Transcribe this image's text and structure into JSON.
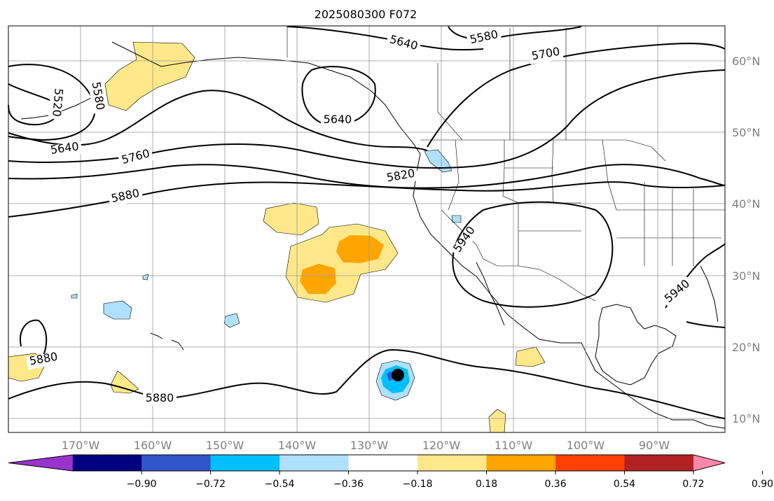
{
  "title": "2025080300 F072",
  "lon_labels": [
    "170°W",
    "160°W",
    "150°W",
    "140°W",
    "130°W",
    "120°W",
    "110°W",
    "100°W",
    "90°W"
  ],
  "lat_labels": [
    "60°N",
    "50°N",
    "40°N",
    "30°N",
    "20°N",
    "10°N"
  ],
  "contour_labels": [
    "5640",
    "5580",
    "5700",
    "5580",
    "5520",
    "5640",
    "5640",
    "5760",
    "5820",
    "5880",
    "5940",
    "5940",
    "5880",
    "5880"
  ],
  "colorbar": {
    "colors": [
      "#9933cc",
      "#000080",
      "#3355cc",
      "#00bfff",
      "#b0e0ff",
      "#ffffff",
      "#ffe88a",
      "#ffa500",
      "#ff4000",
      "#b22222",
      "#ff88aa"
    ],
    "tick_labels": [
      "−0.90",
      "−0.72",
      "−0.54",
      "−0.36",
      "−0.18",
      "0.18",
      "0.36",
      "0.54",
      "0.72",
      "0.90"
    ]
  },
  "map_colors": {
    "yellow": "#ffe88a",
    "orange": "#ffa500",
    "light_blue": "#b0e0ff",
    "blue": "#00bfff",
    "dark_blue": "#3355cc",
    "grid": "#999999"
  }
}
